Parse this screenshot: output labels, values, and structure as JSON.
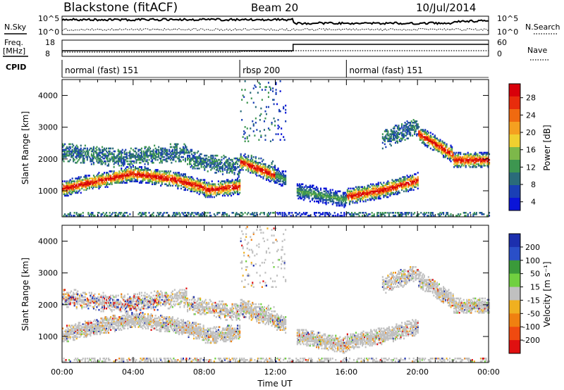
{
  "header": {
    "station": "Blackstone (fitACF)",
    "beam": "Beam 20",
    "date": "10/Jul/2014"
  },
  "top_panels": {
    "nsky_label": "N.Sky",
    "nsearch_label": "N.Search",
    "freq_label_1": "Freq.",
    "freq_label_2": "[MHz]",
    "nave_label": "Nave",
    "cpid_label": "CPID",
    "noise_ticks_left": [
      "10^5",
      "10^0"
    ],
    "noise_ticks_right": [
      "10^5",
      "10^0"
    ],
    "freq_ticks": [
      "18",
      "8"
    ],
    "nave_ticks": [
      "60",
      "0"
    ]
  },
  "cpid_segments": [
    {
      "label": "normal (fast) 151",
      "start_hour": 0
    },
    {
      "label": "rbsp 200",
      "start_hour": 10
    },
    {
      "label": "normal (fast) 151",
      "start_hour": 16
    }
  ],
  "chart_data": [
    {
      "type": "heatmap",
      "panel": "power",
      "ylabel": "Slant Range [km]",
      "xlim": [
        0,
        24
      ],
      "ylim": [
        180,
        4500
      ],
      "y_ticks": [
        "1000",
        "2000",
        "3000",
        "4000"
      ],
      "colorbar_label": "Power [dB]",
      "colorbar_ticks": [
        "28",
        "24",
        "20",
        "16",
        "12",
        "8",
        "4"
      ],
      "colors": [
        "#0a14d8",
        "#1a3fb5",
        "#2a6b7a",
        "#3d9650",
        "#7db84a",
        "#f0d030",
        "#f5a020",
        "#f06a10",
        "#e82c0c",
        "#d8000a"
      ]
    },
    {
      "type": "heatmap",
      "panel": "velocity",
      "ylabel": "Slant Range [km]",
      "xlabel": "Time UT",
      "xlim": [
        0,
        24
      ],
      "ylim": [
        180,
        4500
      ],
      "y_ticks": [
        "1000",
        "2000",
        "3000",
        "4000"
      ],
      "x_ticks": [
        "00:00",
        "04:00",
        "08:00",
        "12:00",
        "16:00",
        "20:00",
        "00:00"
      ],
      "colorbar_label": "Velocity [m s⁻¹]",
      "colorbar_ticks": [
        "200",
        "100",
        "50",
        "15",
        "-15",
        "-50",
        "-100",
        "-200"
      ],
      "colors": [
        "#1c2fae",
        "#2a4fc8",
        "#3a9a3a",
        "#70d040",
        "#c0c0c0",
        "#f0b020",
        "#f08010",
        "#f04a10",
        "#e01010"
      ]
    }
  ]
}
